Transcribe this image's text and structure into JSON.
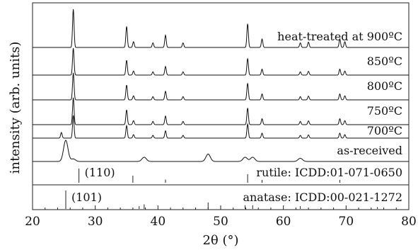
{
  "chart_data": {
    "type": "line",
    "xlabel": "2θ (°)",
    "ylabel": "intensity (arb. units)",
    "xlim": [
      20,
      80
    ],
    "xticks": [
      20,
      30,
      40,
      50,
      60,
      70,
      80
    ],
    "traces": [
      {
        "label": "heat-treated at 900ºC",
        "kind": "rutile"
      },
      {
        "label": "850ºC",
        "kind": "rutile"
      },
      {
        "label": "800ºC",
        "kind": "rutile"
      },
      {
        "label": "750ºC",
        "kind": "rutile"
      },
      {
        "label": "700ºC",
        "kind": "rutile_anatase"
      },
      {
        "label": "as-received",
        "kind": "anatase"
      }
    ],
    "rutile_peaks": [
      {
        "x": 26.5,
        "h": 1.0
      },
      {
        "x": 35.0,
        "h": 0.55
      },
      {
        "x": 36.1,
        "h": 0.15
      },
      {
        "x": 39.2,
        "h": 0.12
      },
      {
        "x": 41.2,
        "h": 0.32
      },
      {
        "x": 44.0,
        "h": 0.12
      },
      {
        "x": 54.3,
        "h": 0.62
      },
      {
        "x": 56.6,
        "h": 0.22
      },
      {
        "x": 62.7,
        "h": 0.12
      },
      {
        "x": 64.0,
        "h": 0.14
      },
      {
        "x": 69.0,
        "h": 0.22
      },
      {
        "x": 69.8,
        "h": 0.15
      }
    ],
    "anatase_peaks": [
      {
        "x": 25.3,
        "h": 1.0
      },
      {
        "x": 37.8,
        "h": 0.2
      },
      {
        "x": 48.0,
        "h": 0.35
      },
      {
        "x": 53.9,
        "h": 0.2
      },
      {
        "x": 55.1,
        "h": 0.2
      },
      {
        "x": 62.7,
        "h": 0.15
      }
    ],
    "references": [
      {
        "label": "rutile: ICDD:01-071-0650",
        "annotation": "(110)",
        "sticks": [
          {
            "x": 27.4,
            "h": 1.0
          },
          {
            "x": 36.0,
            "h": 0.5
          },
          {
            "x": 41.2,
            "h": 0.22
          },
          {
            "x": 54.3,
            "h": 0.6
          },
          {
            "x": 56.6,
            "h": 0.2
          },
          {
            "x": 69.0,
            "h": 0.2
          }
        ]
      },
      {
        "label": "anatase: ICDD:00-021-1272",
        "annotation": "(101)",
        "sticks": [
          {
            "x": 25.3,
            "h": 1.0
          },
          {
            "x": 37.0,
            "h": 0.15
          },
          {
            "x": 37.8,
            "h": 0.25
          },
          {
            "x": 48.0,
            "h": 0.35
          },
          {
            "x": 53.9,
            "h": 0.2
          },
          {
            "x": 55.1,
            "h": 0.2
          },
          {
            "x": 62.7,
            "h": 0.15
          },
          {
            "x": 75.0,
            "h": 0.1
          }
        ]
      }
    ]
  }
}
